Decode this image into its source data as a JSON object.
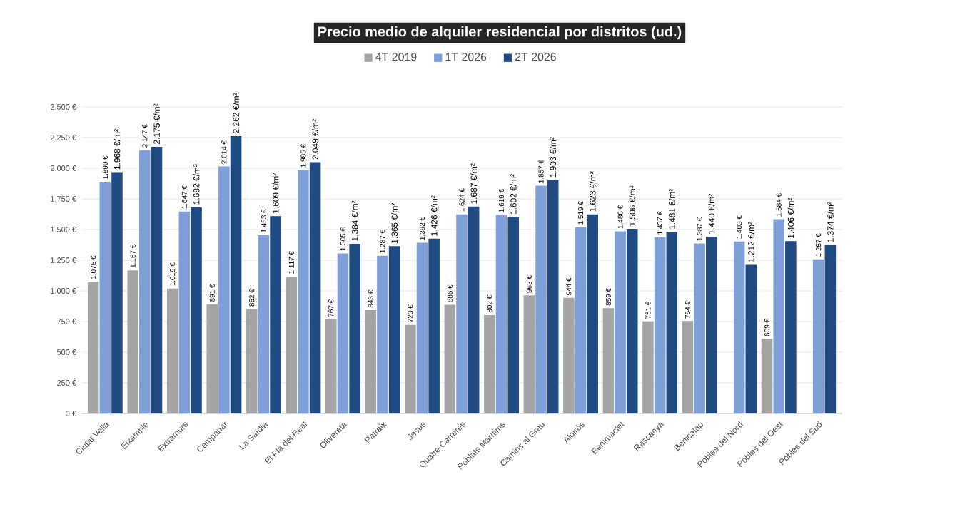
{
  "chart_data": {
    "type": "bar",
    "title": "Precio medio de alquiler residencial por distritos (ud.)",
    "categories": [
      "Ciutat Vella",
      "Eixample",
      "Extramurs",
      "Campanar",
      "La Saïdia",
      "El Pla del Real",
      "Olivereta",
      "Patraix",
      "Jesus",
      "Quatre Carreres",
      "Poblats Marítims",
      "Camins al Grau",
      "Algirós",
      "Benimaclet",
      "Rascanya",
      "Benicalap",
      "Pobles del Nord",
      "Pobles del Oest",
      "Pobles del Sud"
    ],
    "series": [
      {
        "name": "4T 2019",
        "color": "#a5a5a5",
        "values": [
          1075,
          1167,
          1019,
          891,
          852,
          1117,
          767,
          843,
          723,
          886,
          802,
          963,
          944,
          859,
          751,
          754,
          null,
          609,
          null
        ],
        "value_labels": [
          "1.075 €",
          "1.167 €",
          "1.019 €",
          "891 €",
          "852 €",
          "1.117 €",
          "767 €",
          "843 €",
          "723 €",
          "886 €",
          "802 €",
          "963 €",
          "944 €",
          "859 €",
          "751 €",
          "754 €",
          null,
          "609 €",
          null
        ]
      },
      {
        "name": "1T 2026",
        "color": "#7f9fd8",
        "values": [
          1890,
          2147,
          1647,
          2014,
          1453,
          1985,
          1305,
          1287,
          1392,
          1624,
          1619,
          1857,
          1519,
          1486,
          1437,
          1387,
          1403,
          1584,
          1257
        ],
        "value_labels": [
          "1.890 €",
          "2.147 €",
          "1.647 €",
          "2.014 €",
          "1.453 €",
          "1.985 €",
          "1.305 €",
          "1.287 €",
          "1.392 €",
          "1.624 €",
          "1.619 €",
          "1.857 €",
          "1.519 €",
          "1.486 €",
          "1.437 €",
          "1.387 €",
          "1.403 €",
          "1.584 €",
          "1.257 €"
        ]
      },
      {
        "name": "2T 2026",
        "color": "#1f4a82",
        "values": [
          1968,
          2175,
          1682,
          2262,
          1609,
          2049,
          1384,
          1365,
          1426,
          1687,
          1602,
          1903,
          1623,
          1506,
          1481,
          1440,
          1212,
          1406,
          1374
        ],
        "value_labels": [
          "1.968 €/m²",
          "2.175 €/m²",
          "1.682 €/m²",
          "2.262 €/m²",
          "1.609 €/m²",
          "2.049 €/m²",
          "1.384 €/m²",
          "1.365 €/m²",
          "1.426 €/m²",
          "1.687 €/m²",
          "1.602 €/m²",
          "1.903 €/m²",
          "1.623 €/m²",
          "1.506 €/m²",
          "1.481 €/m²",
          "1.440 €/m²",
          "1.212 €/m²",
          "1.406 €/m²",
          "1.374 €/m²"
        ]
      }
    ],
    "ylim": [
      0,
      2500
    ],
    "yticks": [
      {
        "value": 0,
        "label": "0 €"
      },
      {
        "value": 250,
        "label": "250 €"
      },
      {
        "value": 500,
        "label": "500 €"
      },
      {
        "value": 750,
        "label": "750 €"
      },
      {
        "value": 1000,
        "label": "1.000 €"
      },
      {
        "value": 1250,
        "label": "1.250 €"
      },
      {
        "value": 1500,
        "label": "1.500 €"
      },
      {
        "value": 1750,
        "label": "1.750 €"
      },
      {
        "value": 2000,
        "label": "2.000 €"
      },
      {
        "value": 2250,
        "label": "2.250 €"
      },
      {
        "value": 2500,
        "label": "2.500 €"
      }
    ],
    "grid": "y",
    "legend": "top"
  }
}
